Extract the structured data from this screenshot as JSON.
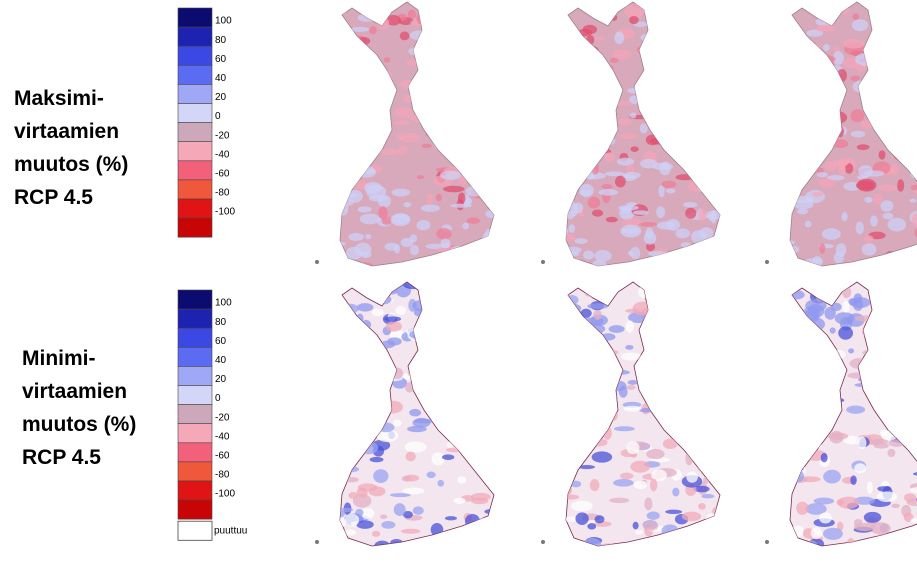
{
  "rows": [
    {
      "label": [
        "Maksimi-",
        "virtaamien",
        "muutos (%)",
        "RCP 4.5"
      ],
      "legend": {
        "colors": [
          "#0b0b70",
          "#1e22b0",
          "#3c48e4",
          "#5c6cf2",
          "#9ea8f6",
          "#d4d6f8",
          "#cda8ba",
          "#f5a8b8",
          "#f2607a",
          "#f0583c",
          "#e01414",
          "#c80404"
        ],
        "ticks": [
          "100",
          "80",
          "60",
          "40",
          "20",
          "0",
          "-20",
          "-40",
          "-60",
          "-80",
          "-100"
        ]
      },
      "map_fill": "#d7a9bb"
    },
    {
      "label": [
        "Minimi-",
        "virtaamien",
        "muutos (%)",
        "RCP 4.5"
      ],
      "legend": {
        "colors": [
          "#0b0b70",
          "#1e22b0",
          "#3c48e4",
          "#5c6cf2",
          "#9ea8f6",
          "#d4d6f8",
          "#cda8ba",
          "#f5a8b8",
          "#f2607a",
          "#f0583c",
          "#e01414",
          "#c80404"
        ],
        "ticks": [
          "100",
          "80",
          "60",
          "40",
          "20",
          "0",
          "-20",
          "-40",
          "-60",
          "-80",
          "-100"
        ],
        "missing": {
          "label": "puuttuu",
          "color": "#ffffff"
        }
      },
      "map_fill": "#f3e6ee"
    }
  ]
}
